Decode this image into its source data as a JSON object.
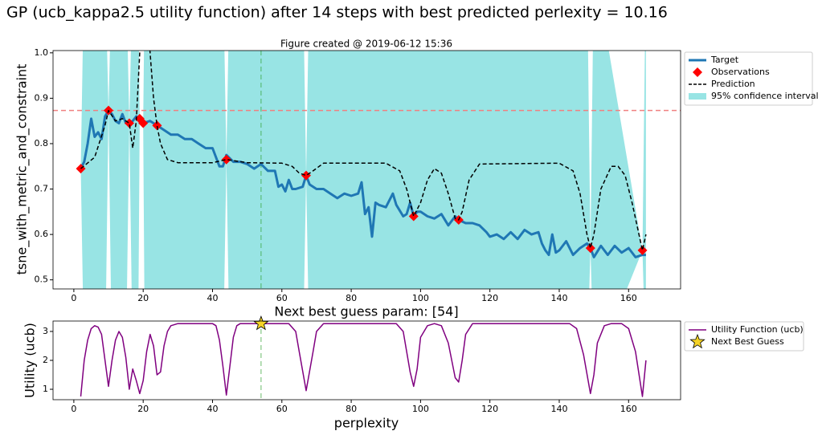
{
  "title": "GP (ucb_kappa2.5 utility function) after 14 steps with best predicted perlexity = 10.16",
  "chart_data": [
    {
      "type": "line",
      "title": "Figure created @ 2019-06-12 15:36",
      "y_label": "tsne_with_metric_and_constraint",
      "xlim": [
        -6,
        175
      ],
      "xticks": [
        0,
        20,
        40,
        60,
        80,
        100,
        120,
        140,
        160
      ],
      "ylim": [
        0.48,
        1.005
      ],
      "yticks": [
        0.5,
        0.6,
        0.7,
        0.8,
        0.9,
        {
          "value": 1,
          "label": "1.0"
        }
      ],
      "legend": "outside right",
      "hline": {
        "y": 0.873,
        "color": "#f08080"
      },
      "vline": {
        "x": 54,
        "color": "#2ca02c"
      },
      "series": [
        {
          "name": "Target",
          "type": "line",
          "color": "#1f77b4",
          "width": 3,
          "x": [
            2,
            3,
            4,
            5,
            6,
            7,
            8,
            9,
            10,
            11,
            12,
            13,
            14,
            15,
            16,
            17,
            18,
            19,
            20,
            22,
            24,
            26,
            28,
            30,
            32,
            34,
            36,
            38,
            40,
            42,
            43,
            44,
            46,
            48,
            50,
            52,
            54,
            56,
            58,
            59,
            60,
            61,
            62,
            63,
            64,
            66,
            67,
            68,
            70,
            72,
            74,
            76,
            78,
            80,
            82,
            83,
            84,
            85,
            86,
            87,
            88,
            90,
            92,
            93,
            95,
            96,
            97,
            98,
            99,
            100,
            102,
            104,
            106,
            108,
            110,
            111,
            113,
            115,
            117,
            119,
            120,
            122,
            124,
            126,
            128,
            130,
            132,
            134,
            135,
            136,
            137,
            138,
            139,
            140,
            142,
            144,
            146,
            148,
            149,
            150,
            152,
            154,
            156,
            158,
            160,
            162,
            164,
            165
          ],
          "values": [
            0.745,
            0.76,
            0.8,
            0.855,
            0.815,
            0.825,
            0.81,
            0.86,
            0.873,
            0.865,
            0.85,
            0.845,
            0.865,
            0.845,
            0.845,
            0.85,
            0.86,
            0.855,
            0.845,
            0.85,
            0.84,
            0.83,
            0.82,
            0.82,
            0.81,
            0.81,
            0.8,
            0.79,
            0.79,
            0.75,
            0.75,
            0.775,
            0.76,
            0.76,
            0.755,
            0.745,
            0.755,
            0.74,
            0.74,
            0.705,
            0.71,
            0.695,
            0.72,
            0.7,
            0.7,
            0.705,
            0.73,
            0.71,
            0.7,
            0.7,
            0.69,
            0.68,
            0.69,
            0.685,
            0.69,
            0.715,
            0.645,
            0.66,
            0.595,
            0.67,
            0.665,
            0.66,
            0.69,
            0.665,
            0.64,
            0.645,
            0.67,
            0.64,
            0.65,
            0.65,
            0.64,
            0.635,
            0.645,
            0.62,
            0.64,
            0.632,
            0.625,
            0.625,
            0.62,
            0.605,
            0.595,
            0.6,
            0.59,
            0.605,
            0.59,
            0.61,
            0.6,
            0.605,
            0.58,
            0.565,
            0.555,
            0.6,
            0.56,
            0.565,
            0.585,
            0.555,
            0.57,
            0.58,
            0.57,
            0.55,
            0.575,
            0.555,
            0.575,
            0.56,
            0.57,
            0.55,
            0.555,
            0.555
          ]
        },
        {
          "name": "Observations",
          "type": "scatter",
          "marker": "diamond",
          "color": "#ff0000",
          "x": [
            2,
            10,
            16,
            19,
            20,
            24,
            44,
            67,
            98,
            111,
            149,
            164
          ],
          "values": [
            0.745,
            0.873,
            0.845,
            0.855,
            0.845,
            0.84,
            0.765,
            0.73,
            0.64,
            0.632,
            0.57,
            0.565
          ]
        },
        {
          "name": "Prediction",
          "type": "line",
          "color": "#000000",
          "width": 1.5,
          "dashed": true,
          "x": [
            2,
            6,
            9,
            10,
            12,
            14,
            16,
            17,
            18,
            19,
            19.5,
            21,
            22,
            23,
            24,
            25,
            27,
            30,
            40,
            44,
            50,
            60,
            63,
            65,
            67,
            69,
            72,
            90,
            94,
            96,
            98,
            100,
            102,
            104,
            106,
            108,
            110,
            111,
            112,
            114,
            117,
            140,
            144,
            146,
            148,
            149,
            150,
            152,
            155,
            157,
            159,
            161,
            163,
            164,
            165
          ],
          "values": [
            0.745,
            0.77,
            0.84,
            0.873,
            0.85,
            0.855,
            0.845,
            0.79,
            0.85,
            1.0,
            1.1,
            1.1,
            1.0,
            0.9,
            0.84,
            0.8,
            0.765,
            0.758,
            0.758,
            0.765,
            0.758,
            0.757,
            0.75,
            0.735,
            0.73,
            0.74,
            0.757,
            0.757,
            0.74,
            0.7,
            0.64,
            0.67,
            0.72,
            0.745,
            0.735,
            0.69,
            0.635,
            0.632,
            0.65,
            0.72,
            0.755,
            0.757,
            0.74,
            0.69,
            0.6,
            0.57,
            0.6,
            0.7,
            0.75,
            0.75,
            0.73,
            0.67,
            0.6,
            0.565,
            0.6
          ]
        },
        {
          "name": "95% confidence interval",
          "type": "band",
          "color": "#98e4e4",
          "x": [
            2,
            3,
            9,
            10,
            11,
            15,
            16,
            17,
            18.5,
            19,
            20,
            20.5,
            21,
            43,
            44,
            45,
            66,
            67,
            68,
            148,
            149,
            150,
            164,
            165
          ],
          "lower": [
            0.745,
            0.3,
            0.3,
            0.873,
            0.3,
            0.3,
            0.845,
            0.3,
            0.3,
            0.855,
            0.845,
            0.3,
            0.3,
            0.3,
            0.765,
            0.3,
            0.3,
            0.73,
            0.3,
            0.3,
            0.57,
            0.3,
            0.565,
            0.3
          ],
          "upper": [
            0.745,
            1.2,
            1.2,
            0.873,
            1.2,
            1.2,
            0.845,
            1.2,
            1.2,
            0.855,
            0.845,
            1.2,
            1.2,
            1.2,
            0.765,
            1.2,
            1.2,
            0.73,
            1.2,
            1.2,
            0.57,
            1.2,
            0.565,
            1.2
          ]
        }
      ]
    },
    {
      "type": "line",
      "title": "Next best guess param: [54]",
      "y_label": "Utility (ucb)",
      "x_label": "perplexity",
      "xlim": [
        -6,
        175
      ],
      "xticks": [
        0,
        20,
        40,
        60,
        80,
        100,
        120,
        140,
        160
      ],
      "ylim": [
        0.64,
        3.36
      ],
      "yticks": [
        1,
        2,
        3
      ],
      "legend": "outside right",
      "vline": {
        "x": 54,
        "color": "#2ca02c"
      },
      "series": [
        {
          "name": "Utility Function (ucb)",
          "type": "line",
          "color": "#800080",
          "width": 1.5,
          "x": [
            2,
            3,
            4,
            5,
            6,
            7,
            8,
            9,
            10,
            11,
            12,
            13,
            14,
            15,
            16,
            17,
            18,
            19,
            20,
            21,
            22,
            23,
            24,
            25,
            26,
            27,
            28,
            30,
            40,
            41,
            42,
            43,
            44,
            45,
            46,
            47,
            48,
            62,
            64,
            65,
            67,
            69,
            70,
            72,
            93,
            95,
            97,
            98,
            99,
            100,
            102,
            104,
            106,
            108,
            110,
            111,
            112,
            113,
            115,
            143,
            145,
            147,
            149,
            150,
            151,
            153,
            155,
            158,
            160,
            162,
            164,
            165
          ],
          "values": [
            0.75,
            2.0,
            2.7,
            3.1,
            3.2,
            3.15,
            2.9,
            2.0,
            1.1,
            2.0,
            2.7,
            3.0,
            2.8,
            2.1,
            1.0,
            1.7,
            1.3,
            0.85,
            1.3,
            2.3,
            2.9,
            2.5,
            1.5,
            1.6,
            2.5,
            3.0,
            3.2,
            3.27,
            3.27,
            3.2,
            2.7,
            1.8,
            0.8,
            1.8,
            2.8,
            3.2,
            3.27,
            3.27,
            3.0,
            2.3,
            0.95,
            2.3,
            3.0,
            3.27,
            3.27,
            3.0,
            1.6,
            1.1,
            1.7,
            2.8,
            3.2,
            3.27,
            3.2,
            2.6,
            1.4,
            1.25,
            2.0,
            2.9,
            3.27,
            3.27,
            3.1,
            2.2,
            0.85,
            1.5,
            2.6,
            3.2,
            3.27,
            3.27,
            3.1,
            2.3,
            0.75,
            2.0
          ]
        },
        {
          "name": "Next Best Guess",
          "type": "scatter",
          "marker": "star",
          "color": "#f5d327",
          "x": [
            54
          ],
          "values": [
            3.27
          ]
        }
      ]
    }
  ]
}
